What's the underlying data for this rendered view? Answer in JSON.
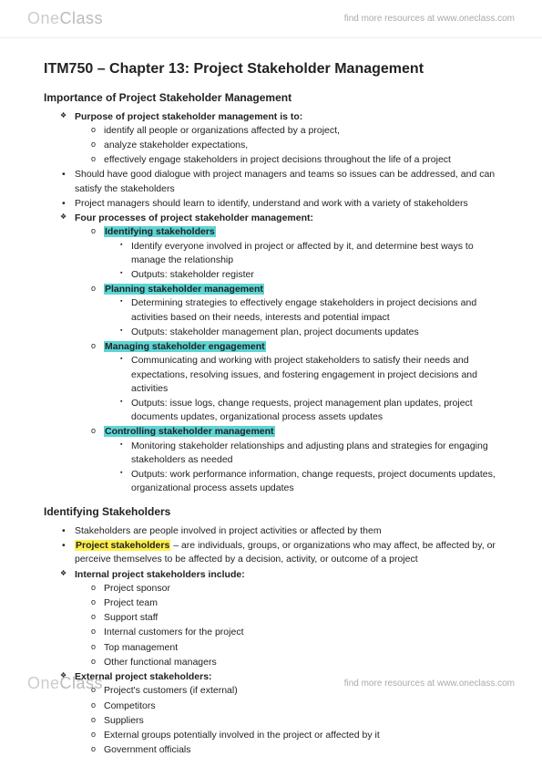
{
  "brand": {
    "part1": "One",
    "part2": "Class",
    "tagline": "find more resources at www.oneclass.com"
  },
  "title": "ITM750 – Chapter 13: Project Stakeholder Management",
  "s1": {
    "heading": "Importance of Project Stakeholder Management",
    "purpose_lead": "Purpose of project stakeholder management is to:",
    "purpose_items": [
      "identify all people or organizations affected by a project,",
      "analyze stakeholder expectations,",
      "effectively engage stakeholders in project decisions throughout the life of a project"
    ],
    "dialogue": "Should have good dialogue with project managers and teams so issues can be addressed, and can satisfy the stakeholders",
    "learn": "Project managers should learn to identify, understand and work with a variety of stakeholders",
    "four_lead": "Four processes of project stakeholder management:",
    "proc": [
      {
        "name": "Identifying stakeholders",
        "desc": "Identify everyone involved in project or affected by it, and determine best ways to manage the relationship",
        "out": "Outputs: stakeholder register"
      },
      {
        "name": "Planning stakeholder management",
        "desc": "Determining strategies to effectively engage stakeholders in project decisions and activities based on their needs, interests and potential impact",
        "out": "Outputs: stakeholder management plan, project documents updates"
      },
      {
        "name": "Managing stakeholder engagement",
        "desc": "Communicating and working with project stakeholders to satisfy their needs and expectations, resolving issues, and fostering engagement in project decisions and activities",
        "out": "Outputs: issue logs, change requests, project management plan updates, project documents updates, organizational process assets updates"
      },
      {
        "name": "Controlling stakeholder management",
        "desc": "Monitoring stakeholder relationships and adjusting plans and strategies for engaging stakeholders as needed",
        "out": "Outputs: work performance information, change requests, project documents updates, organizational process assets updates"
      }
    ]
  },
  "s2": {
    "heading": "Identifying Stakeholders",
    "intro": "Stakeholders are people involved in project activities or affected by them",
    "def_term": "Project stakeholders",
    "def_rest": " – are individuals, groups, or organizations who may affect, be affected by, or perceive themselves to be affected by a decision, activity, or outcome of a project",
    "internal_lead": "Internal project stakeholders include:",
    "internal": [
      "Project sponsor",
      "Project team",
      "Support staff",
      "Internal customers for the project",
      "Top management",
      "Other functional managers"
    ],
    "external_lead": "External project stakeholders:",
    "external": [
      "Project's customers (if external)",
      "Competitors",
      "Suppliers",
      "External groups potentially involved in the project or affected by it",
      "Government officials"
    ]
  }
}
